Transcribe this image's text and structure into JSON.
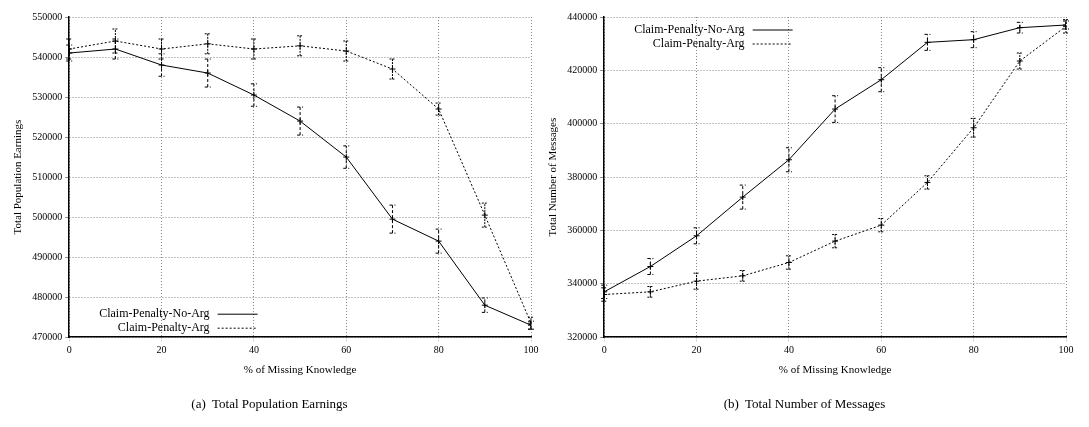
{
  "chart_data": [
    {
      "type": "line",
      "title": "(a)  Total Population Earnings",
      "xlabel": "% of Missing Knowledge",
      "ylabel": "Total Population Earnings",
      "x": [
        0,
        10,
        20,
        30,
        40,
        50,
        60,
        70,
        80,
        90,
        100
      ],
      "xlim": [
        0,
        100
      ],
      "xticks": [
        0,
        20,
        40,
        60,
        80,
        100
      ],
      "ylim": [
        470000,
        550000
      ],
      "yticks": [
        470000,
        480000,
        490000,
        500000,
        510000,
        520000,
        530000,
        540000,
        550000
      ],
      "grid": true,
      "legend": "bottom left",
      "series": [
        {
          "name": "Claim-Penalty-No-Arg",
          "color": "#000000",
          "line_style": "solid",
          "marker": "cross",
          "values": [
            541000,
            542000,
            538000,
            536000,
            530500,
            524000,
            515000,
            499500,
            494000,
            478000,
            473000
          ],
          "errors": [
            2000,
            2500,
            2800,
            3500,
            2800,
            3500,
            2800,
            3500,
            3000,
            1800,
            1000
          ]
        },
        {
          "name": "Claim-Penalty-Arg",
          "color": "#000000",
          "line_style": "dotted",
          "marker": "cross",
          "values": [
            542000,
            544000,
            542000,
            543300,
            542000,
            542800,
            541500,
            537000,
            527000,
            500500,
            473500
          ],
          "errors": [
            2500,
            3000,
            2500,
            2500,
            2500,
            2500,
            2500,
            2500,
            1500,
            3000,
            1500
          ]
        }
      ]
    },
    {
      "type": "line",
      "title": "(b)  Total Number of Messages",
      "xlabel": "% of Missing Knowledge",
      "ylabel": "Total Number of Messages",
      "x": [
        0,
        10,
        20,
        30,
        40,
        50,
        60,
        70,
        80,
        90,
        100
      ],
      "xlim": [
        0,
        100
      ],
      "xticks": [
        0,
        20,
        40,
        60,
        80,
        100
      ],
      "ylim": [
        320000,
        440000
      ],
      "yticks": [
        320000,
        340000,
        360000,
        380000,
        400000,
        420000,
        440000
      ],
      "grid": true,
      "legend": "top left",
      "series": [
        {
          "name": "Claim-Penalty-No-Arg",
          "color": "#000000",
          "line_style": "solid",
          "marker": "cross",
          "values": [
            337000,
            346500,
            358000,
            372500,
            386500,
            405500,
            416500,
            430500,
            431500,
            436000,
            437000
          ],
          "errors": [
            2500,
            3000,
            3000,
            4500,
            4500,
            5000,
            4500,
            3000,
            3000,
            2000,
            1500
          ]
        },
        {
          "name": "Claim-Penalty-Arg",
          "color": "#000000",
          "line_style": "dotted",
          "marker": "cross",
          "values": [
            336000,
            337000,
            341000,
            343000,
            348000,
            356000,
            362000,
            378000,
            398500,
            423500,
            436500
          ],
          "errors": [
            2500,
            2000,
            3000,
            2000,
            2500,
            2500,
            2500,
            2500,
            3500,
            3000,
            2500
          ]
        }
      ]
    }
  ]
}
